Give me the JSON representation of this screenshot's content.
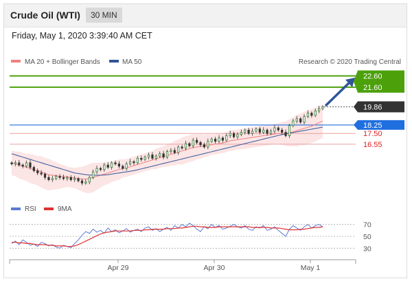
{
  "header": {
    "title": "Crude Oil (WTI)",
    "timeframe": "30 MIN"
  },
  "timestamp": "Friday, May 1, 2020 3:39:40 AM CET",
  "copyright": "Research © 2020 Trading Central",
  "legend": {
    "ma20": {
      "label": "MA 20 + Bollinger Bands",
      "color": "#f08080"
    },
    "ma50": {
      "label": "MA 50",
      "color": "#2f5597"
    },
    "rsi": {
      "label": "RSI",
      "color": "#5b7bd5"
    },
    "rsi9ma": {
      "label": "9MA",
      "color": "#e03030"
    }
  },
  "colors": {
    "resistance": "#4ca10b",
    "support": "#1f6fe0",
    "support_text": "#e02020",
    "last": "#333333",
    "arrow": "#2f5597"
  },
  "chart_data": {
    "type": "candlestick",
    "x_ticks": [
      "Apr 29",
      "Apr 30",
      "May 1"
    ],
    "levels": [
      {
        "value": 22.6,
        "label": "22.60",
        "kind": "resistance"
      },
      {
        "value": 21.6,
        "label": "21.60",
        "kind": "resistance"
      },
      {
        "value": 19.86,
        "label": "19.86",
        "kind": "last"
      },
      {
        "value": 18.25,
        "label": "18.25",
        "kind": "pivot"
      },
      {
        "value": 17.5,
        "label": "17.50",
        "kind": "support"
      },
      {
        "value": 16.55,
        "label": "16.55",
        "kind": "support"
      }
    ],
    "candles_close": [
      14.8,
      14.9,
      14.7,
      14.6,
      14.9,
      14.5,
      14.2,
      14.0,
      13.9,
      13.6,
      13.4,
      13.5,
      13.7,
      13.6,
      13.5,
      13.6,
      13.4,
      13.5,
      13.3,
      13.1,
      13.2,
      13.6,
      14.1,
      14.4,
      14.3,
      14.7,
      14.5,
      14.9,
      14.8,
      14.6,
      14.4,
      14.8,
      15.0,
      14.9,
      15.3,
      15.2,
      15.4,
      15.6,
      15.3,
      15.5,
      15.7,
      15.4,
      15.9,
      16.0,
      15.8,
      16.3,
      16.2,
      16.6,
      16.4,
      16.9,
      16.7,
      16.5,
      16.3,
      16.8,
      17.0,
      16.8,
      17.1,
      16.9,
      17.3,
      17.5,
      17.2,
      17.4,
      17.6,
      17.8,
      17.5,
      17.7,
      17.9,
      17.6,
      17.8,
      17.5,
      17.7,
      18.0,
      17.8,
      17.6,
      17.3,
      18.2,
      18.6,
      18.8,
      18.5,
      19.0,
      19.3,
      19.1,
      19.5,
      19.7,
      19.86
    ],
    "ma20": [
      14.9,
      14.8,
      14.7,
      14.6,
      14.5,
      14.4,
      14.3,
      14.2,
      14.1,
      13.95,
      13.85,
      13.8,
      13.75,
      13.7,
      13.7,
      13.65,
      13.6,
      13.55,
      13.5,
      13.45,
      13.45,
      13.5,
      13.6,
      13.7,
      13.8,
      13.9,
      14.0,
      14.1,
      14.2,
      14.3,
      14.4,
      14.45,
      14.55,
      14.65,
      14.75,
      14.85,
      14.95,
      15.05,
      15.15,
      15.25,
      15.35,
      15.45,
      15.55,
      15.65,
      15.75,
      15.85,
      15.95,
      16.05,
      16.15,
      16.25,
      16.3,
      16.35,
      16.4,
      16.45,
      16.5,
      16.55,
      16.6,
      16.65,
      16.75,
      16.85,
      16.9,
      16.95,
      17.0,
      17.05,
      17.1,
      17.15,
      17.2,
      17.25,
      17.3,
      17.35,
      17.4,
      17.45,
      17.5,
      17.5,
      17.5,
      17.55,
      17.65,
      17.75,
      17.85,
      17.95,
      18.05,
      18.15,
      18.3,
      18.45,
      18.6
    ],
    "ma50": [
      15.7,
      15.6,
      15.5,
      15.4,
      15.3,
      15.2,
      15.1,
      15.0,
      14.9,
      14.8,
      14.7,
      14.6,
      14.5,
      14.4,
      14.3,
      14.2,
      14.1,
      14.0,
      13.95,
      13.9,
      13.85,
      13.82,
      13.8,
      13.8,
      13.8,
      13.82,
      13.85,
      13.9,
      13.95,
      14.0,
      14.05,
      14.1,
      14.15,
      14.2,
      14.28,
      14.36,
      14.44,
      14.52,
      14.6,
      14.68,
      14.76,
      14.84,
      14.92,
      15.0,
      15.08,
      15.16,
      15.24,
      15.32,
      15.4,
      15.48,
      15.56,
      15.64,
      15.72,
      15.8,
      15.88,
      15.96,
      16.04,
      16.12,
      16.2,
      16.28,
      16.36,
      16.44,
      16.52,
      16.6,
      16.68,
      16.76,
      16.84,
      16.92,
      17.0,
      17.08,
      17.16,
      17.24,
      17.32,
      17.4,
      17.46,
      17.52,
      17.58,
      17.64,
      17.7,
      17.76,
      17.82,
      17.88,
      17.94,
      18.0,
      18.06
    ],
    "bb_width": [
      1.1,
      1.1,
      1.2,
      1.2,
      1.2,
      1.3,
      1.3,
      1.3,
      1.4,
      1.4,
      1.4,
      1.3,
      1.2,
      1.1,
      1.0,
      0.9,
      0.9,
      0.9,
      1.0,
      1.1,
      1.2,
      1.3,
      1.3,
      1.2,
      1.1,
      1.0,
      1.0,
      0.9,
      0.9,
      0.9,
      0.8,
      0.8,
      0.8,
      0.8,
      0.8,
      0.8,
      0.8,
      0.8,
      0.8,
      0.9,
      0.9,
      0.9,
      1.0,
      1.0,
      1.1,
      1.1,
      1.2,
      1.2,
      1.2,
      1.2,
      1.1,
      1.1,
      1.0,
      1.0,
      0.9,
      0.9,
      0.9,
      0.9,
      0.9,
      0.9,
      0.9,
      0.9,
      0.9,
      0.9,
      0.9,
      0.9,
      0.9,
      0.9,
      0.9,
      0.9,
      0.9,
      0.9,
      0.9,
      1.0,
      1.1,
      1.2,
      1.3,
      1.4,
      1.4,
      1.5,
      1.5,
      1.5,
      1.5,
      1.5,
      1.5
    ],
    "rsi_ticks": [
      70,
      50,
      30
    ],
    "rsi": [
      38,
      42,
      36,
      44,
      40,
      35,
      37,
      33,
      40,
      38,
      34,
      36,
      32,
      30,
      35,
      33,
      31,
      38,
      44,
      52,
      58,
      55,
      62,
      57,
      60,
      55,
      64,
      58,
      61,
      56,
      59,
      63,
      57,
      60,
      62,
      58,
      64,
      66,
      60,
      63,
      58,
      62,
      65,
      60,
      68,
      64,
      70,
      66,
      72,
      68,
      62,
      58,
      66,
      63,
      70,
      65,
      68,
      62,
      64,
      67,
      70,
      66,
      64,
      68,
      62,
      60,
      66,
      64,
      68,
      60,
      62,
      66,
      60,
      55,
      50,
      62,
      68,
      64,
      60,
      66,
      70,
      64,
      68,
      70,
      66
    ],
    "rsi_9ma": [
      40,
      40,
      39,
      39,
      38,
      38,
      37,
      36,
      36,
      36,
      35,
      35,
      34,
      34,
      34,
      33,
      33,
      34,
      36,
      39,
      42,
      45,
      48,
      51,
      54,
      56,
      57,
      58,
      59,
      59,
      59,
      59,
      59,
      60,
      60,
      60,
      61,
      61,
      62,
      62,
      62,
      62,
      63,
      63,
      63,
      64,
      64,
      65,
      66,
      67,
      67,
      66,
      66,
      65,
      65,
      65,
      66,
      66,
      66,
      66,
      66,
      66,
      66,
      66,
      66,
      65,
      65,
      65,
      65,
      65,
      64,
      64,
      64,
      63,
      62,
      61,
      61,
      61,
      62,
      62,
      63,
      64,
      65,
      65,
      66
    ]
  }
}
